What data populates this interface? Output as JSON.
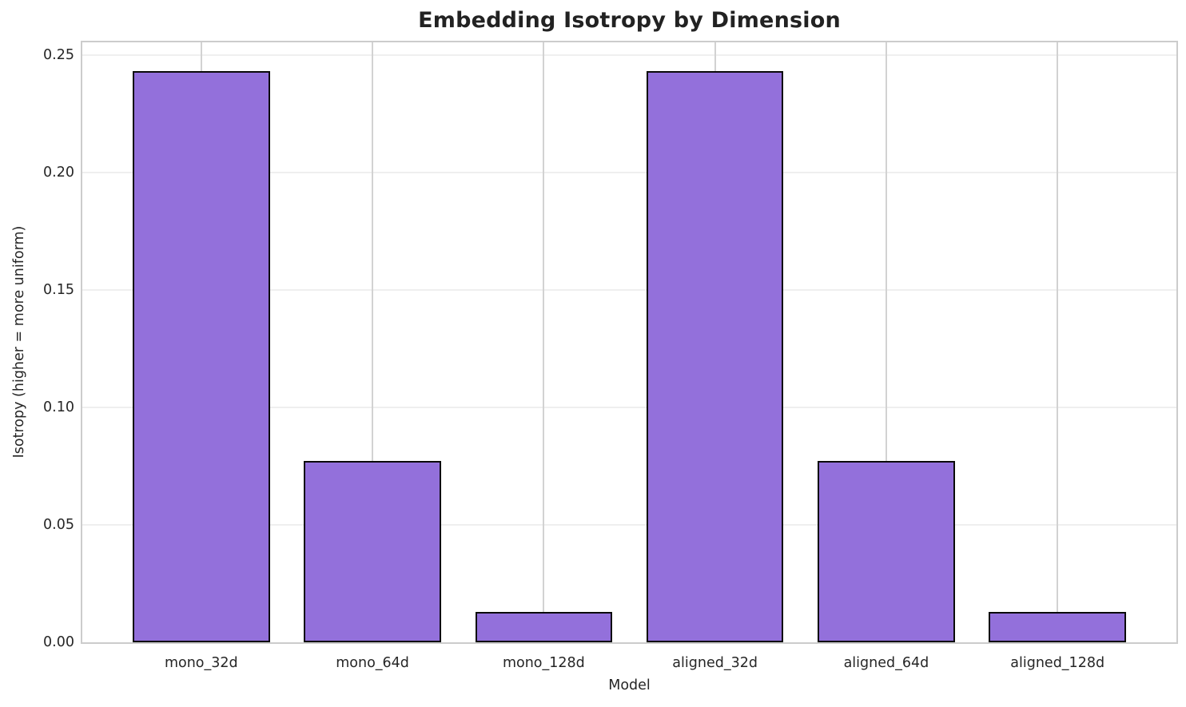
{
  "figure": {
    "title": "Embedding Isotropy by Dimension",
    "xlabel": "Model",
    "ylabel": "Isotropy (higher = more uniform)"
  },
  "chart_data": {
    "type": "bar",
    "title": "Embedding Isotropy by Dimension",
    "xlabel": "Model",
    "ylabel": "Isotropy (higher = more uniform)",
    "categories": [
      "mono_32d",
      "mono_64d",
      "mono_128d",
      "aligned_32d",
      "aligned_64d",
      "aligned_128d"
    ],
    "values": [
      0.243,
      0.077,
      0.013,
      0.243,
      0.077,
      0.013
    ],
    "yticks": [
      0.0,
      0.05,
      0.1,
      0.15,
      0.2,
      0.25
    ],
    "ytick_labels": [
      "0.00",
      "0.05",
      "0.10",
      "0.15",
      "0.20",
      "0.25"
    ],
    "ylim": [
      0,
      0.2553
    ],
    "grid": true,
    "grid_axes": "both",
    "legend": false,
    "bar_width_fraction": 0.8
  },
  "colors": {
    "bar_fill": "#9370DB",
    "bar_edge": "#0a0a0a",
    "grid_horizontal": "#efefef",
    "grid_vertical": "#d2d2d2",
    "spine": "#cccccc",
    "text": "#262626",
    "background": "#ffffff"
  }
}
